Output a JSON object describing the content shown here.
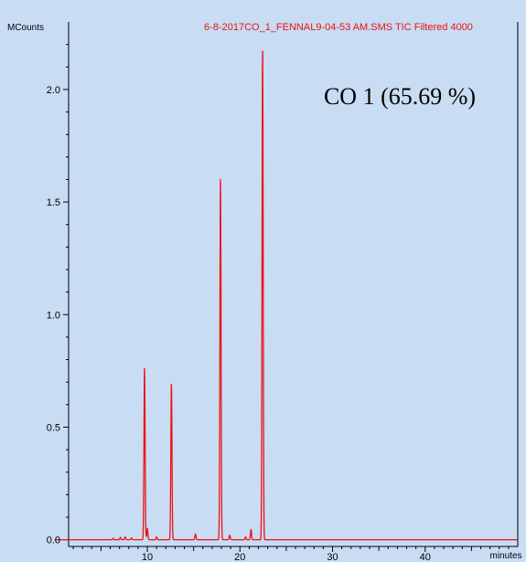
{
  "chart_data": {
    "type": "line",
    "title": "6-8-2017CO_1_FENNAL9-04-53 AM.SMS TIC Filtered 4000",
    "ylabel": "MCounts",
    "xlabel": "minutes",
    "annotation": "CO 1 (65.69 %)",
    "xlim": [
      1.5,
      50
    ],
    "ylim": [
      -0.03,
      2.3
    ],
    "x_ticks": [
      10,
      20,
      30,
      40
    ],
    "x_tick_labels": [
      "10",
      "20",
      "30",
      "40"
    ],
    "y_ticks": [
      0.0,
      0.5,
      1.0,
      1.5,
      2.0
    ],
    "y_tick_labels": [
      "0.0",
      "0.5",
      "1.0",
      "1.5",
      "2.0"
    ],
    "grid": false,
    "colors": {
      "background": "#c8dcf4",
      "series": "#ee1111",
      "axes": "#000000"
    },
    "series": [
      {
        "peaks": [
          {
            "rt": 6.3,
            "height": 0.006
          },
          {
            "rt": 7.1,
            "height": 0.01
          },
          {
            "rt": 7.6,
            "height": 0.012
          },
          {
            "rt": 8.3,
            "height": 0.008
          },
          {
            "rt": 9.7,
            "height": 0.76
          },
          {
            "rt": 10.0,
            "height": 0.05
          },
          {
            "rt": 11.0,
            "height": 0.012
          },
          {
            "rt": 12.6,
            "height": 0.69
          },
          {
            "rt": 15.2,
            "height": 0.025
          },
          {
            "rt": 17.9,
            "height": 1.6
          },
          {
            "rt": 18.9,
            "height": 0.02
          },
          {
            "rt": 20.6,
            "height": 0.012
          },
          {
            "rt": 21.2,
            "height": 0.045
          },
          {
            "rt": 22.45,
            "height": 2.17
          }
        ]
      }
    ]
  }
}
